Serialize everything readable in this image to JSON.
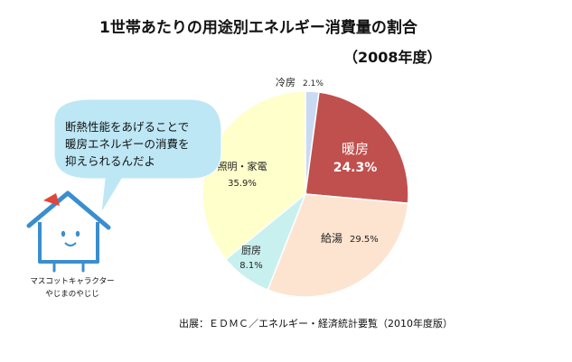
{
  "chart_data": {
    "type": "pie",
    "title": "1世帯あたりの用途別エネルギー消費量の割合",
    "subtitle": "（2008年度）",
    "start_angle_deg": 0,
    "direction": "clockwise",
    "slices": [
      {
        "label": "冷房",
        "value": 2.1,
        "display": "2.1%",
        "color": "#c9daf2"
      },
      {
        "label": "暖房",
        "value": 24.3,
        "display": "24.3%",
        "color": "#c0504d"
      },
      {
        "label": "給湯",
        "value": 29.5,
        "display": "29.5%",
        "color": "#fde4d0"
      },
      {
        "label": "厨房",
        "value": 8.1,
        "display": "8.1%",
        "color": "#c8f0ee"
      },
      {
        "label": "照明・家電",
        "value": 35.9,
        "display": "35.9%",
        "color": "#ffffcc"
      }
    ]
  },
  "bubble": {
    "lines": [
      "断熱性能をあげることで",
      "暖房エネルギーの消費を",
      "抑えられるんだよ"
    ],
    "fill": "#bde7f5"
  },
  "mascot": {
    "caption_lines": [
      "マスコットキャラクター",
      "やじまのやじじ"
    ],
    "color": "#3a8ecf",
    "accent": "#e0463a"
  },
  "source": "出展：ＥＤＭＣ／エネルギー・経済統計要覧（2010年度版）"
}
